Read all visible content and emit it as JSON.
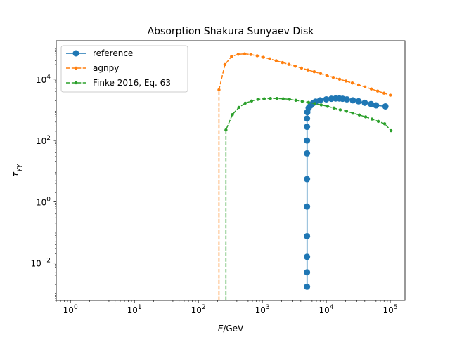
{
  "chart_data": {
    "type": "line",
    "title": "Absorption Shakura Sunyaev Disk",
    "xlabel_symbol": "E",
    "xlabel_unit": "/GeV",
    "ylabel_symbol": "τ",
    "ylabel_sub": "γγ",
    "xscale": "log",
    "yscale": "log",
    "xlim": [
      0.6,
      170000
    ],
    "ylim": [
      0.0006,
      180000
    ],
    "xticks": [
      {
        "base": "10",
        "exp": "0",
        "value": 1
      },
      {
        "base": "10",
        "exp": "1",
        "value": 10
      },
      {
        "base": "10",
        "exp": "2",
        "value": 100
      },
      {
        "base": "10",
        "exp": "3",
        "value": 1000
      },
      {
        "base": "10",
        "exp": "4",
        "value": 10000
      },
      {
        "base": "10",
        "exp": "5",
        "value": 100000
      }
    ],
    "yticks": [
      {
        "base": "10",
        "exp": "−2",
        "value": 0.01
      },
      {
        "base": "10",
        "exp": "0",
        "value": 1
      },
      {
        "base": "10",
        "exp": "2",
        "value": 100
      },
      {
        "base": "10",
        "exp": "4",
        "value": 10000
      }
    ],
    "grid": false,
    "legend_position": "top-left",
    "series": [
      {
        "name": "reference",
        "color": "#1f77b4",
        "style": "solid-circles",
        "x": [
          5000,
          5000,
          5000,
          5000,
          5000,
          5000,
          5000,
          5000,
          5000,
          5000,
          5050,
          5300,
          5700,
          6200,
          6800,
          8000,
          10000,
          12000,
          14000,
          16000,
          18000,
          21000,
          26000,
          32000,
          40000,
          50000,
          60000,
          84000
        ],
        "y": [
          0.0017,
          0.005,
          0.016,
          0.075,
          0.7,
          5.5,
          38,
          100,
          280,
          520,
          840,
          1150,
          1400,
          1650,
          1850,
          2050,
          2200,
          2300,
          2350,
          2350,
          2300,
          2200,
          2050,
          1900,
          1700,
          1550,
          1400,
          1300
        ]
      },
      {
        "name": "agnpy",
        "color": "#ff7f0e",
        "style": "dashed-dots",
        "x": [
          210,
          210,
          260,
          330,
          420,
          530,
          660,
          830,
          1040,
          1310,
          1650,
          2070,
          2600,
          3270,
          4100,
          5150,
          6480,
          8140,
          10230,
          12850,
          16150,
          20290,
          25500,
          32040,
          40260,
          50590,
          63560,
          79860,
          100350
        ],
        "y": [
          0.0006,
          4500,
          30000,
          55000,
          65000,
          67000,
          64000,
          58000,
          52000,
          46000,
          40000,
          35000,
          30500,
          26500,
          23000,
          20000,
          17500,
          15200,
          13200,
          11500,
          10000,
          8700,
          7500,
          6500,
          5600,
          4800,
          4100,
          3500,
          3000
        ]
      },
      {
        "name": "Finke 2016, Eq. 63",
        "color": "#2ca02c",
        "style": "dashed-dots",
        "x": [
          270,
          270,
          340,
          430,
          540,
          680,
          850,
          1070,
          1340,
          1690,
          2120,
          2660,
          3340,
          4200,
          5280,
          6630,
          8330,
          10470,
          13160,
          16530,
          20770,
          26100,
          32800,
          41210,
          51780,
          65070,
          81760,
          102740
        ],
        "y": [
          0.0006,
          220,
          700,
          1200,
          1650,
          1950,
          2200,
          2300,
          2350,
          2350,
          2300,
          2200,
          2050,
          1900,
          1750,
          1600,
          1450,
          1300,
          1150,
          1000,
          900,
          780,
          680,
          590,
          500,
          420,
          350,
          210
        ]
      }
    ]
  }
}
